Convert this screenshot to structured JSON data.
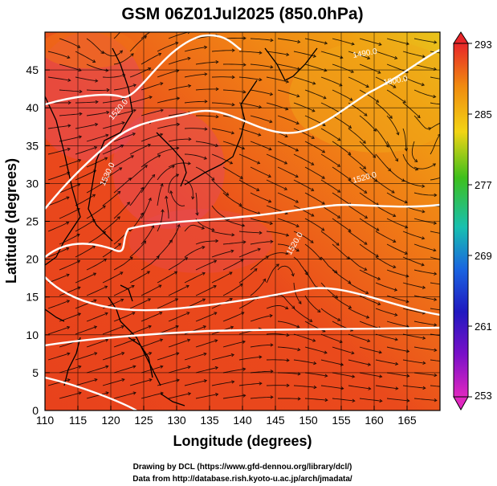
{
  "title": "GSM 06Z01Jul2025 (850.0hPa)",
  "xaxis": {
    "label": "Longitude (degrees)",
    "ticks": [
      "110",
      "115",
      "120",
      "125",
      "130",
      "135",
      "140",
      "145",
      "150",
      "155",
      "160",
      "165"
    ],
    "range": [
      110,
      170
    ]
  },
  "yaxis": {
    "label": "Latitude  (degrees)",
    "ticks": [
      "0",
      "5",
      "10",
      "15",
      "20",
      "25",
      "30",
      "35",
      "40",
      "45"
    ],
    "range": [
      0,
      50
    ]
  },
  "colorbar": {
    "labels": [
      "293",
      "285",
      "277",
      "269",
      "261",
      "253"
    ],
    "min": 253,
    "max": 293
  },
  "contours": {
    "labels": [
      "1490.0",
      "1500.0",
      "1520.0",
      "1530.0",
      "1520.0",
      "1520.0"
    ]
  },
  "credits": {
    "line1": "Drawing by DCL (https://www.gfd-dennou.org/library/dcl/)",
    "line2": "Data from http://database.rish.kyoto-u.ac.jp/arch/jmadata/"
  },
  "colors": {
    "warm": "#e83a1e",
    "hot": "#e63a4e",
    "orange": "#f08c12",
    "yellow": "#e8c820"
  }
}
